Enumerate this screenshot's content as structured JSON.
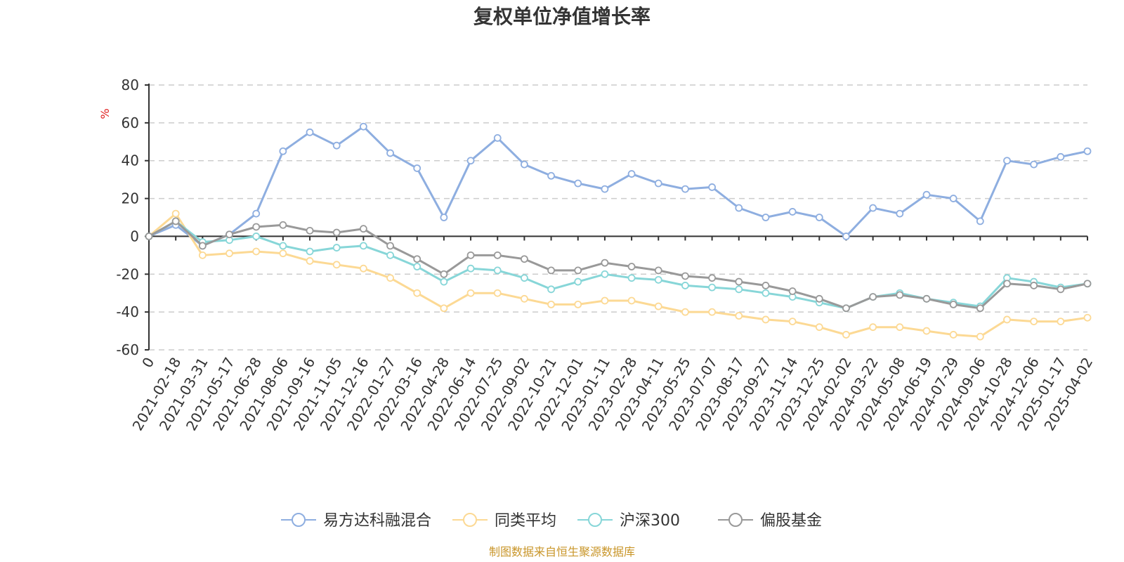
{
  "chart_data": {
    "type": "line",
    "title": "复权单位净值增长率",
    "ylabel": "%",
    "xlabel": "",
    "ylim": [
      -60,
      80
    ],
    "yticks": [
      80,
      60,
      40,
      20,
      0,
      -20,
      -40,
      -60
    ],
    "grid": true,
    "legend_position": "bottom",
    "categories": [
      "0",
      "2021-02-18",
      "2021-03-31",
      "2021-05-17",
      "2021-06-28",
      "2021-08-06",
      "2021-09-16",
      "2021-11-05",
      "2021-12-16",
      "2022-01-27",
      "2022-03-16",
      "2022-04-28",
      "2022-06-14",
      "2022-07-25",
      "2022-09-02",
      "2022-10-21",
      "2022-12-01",
      "2023-01-11",
      "2023-02-28",
      "2023-04-11",
      "2023-05-25",
      "2023-07-07",
      "2023-08-17",
      "2023-09-27",
      "2023-11-14",
      "2023-12-25",
      "2024-02-02",
      "2024-03-22",
      "2024-05-08",
      "2024-06-19",
      "2024-07-29",
      "2024-09-06",
      "2024-10-28",
      "2024-12-06",
      "2025-01-17",
      "2025-04-02"
    ],
    "series": [
      {
        "name": "易方达科融混合",
        "color": "#8eaee0",
        "values": [
          0,
          6,
          -5,
          1,
          12,
          45,
          55,
          48,
          58,
          44,
          36,
          10,
          40,
          52,
          38,
          32,
          28,
          25,
          33,
          28,
          25,
          26,
          15,
          10,
          13,
          10,
          0,
          15,
          12,
          22,
          20,
          8,
          40,
          38,
          42,
          45
        ]
      },
      {
        "name": "同类平均",
        "color": "#fcd994",
        "values": [
          0,
          12,
          -10,
          -9,
          -8,
          -9,
          -13,
          -15,
          -17,
          -22,
          -30,
          -38,
          -30,
          -30,
          -33,
          -36,
          -36,
          -34,
          -34,
          -37,
          -40,
          -40,
          -42,
          -44,
          -45,
          -48,
          -52,
          -48,
          -48,
          -50,
          -52,
          -53,
          -44,
          -45,
          -45,
          -43
        ]
      },
      {
        "name": "沪深300",
        "color": "#87d6d8",
        "values": [
          0,
          8,
          -3,
          -2,
          0,
          -5,
          -8,
          -6,
          -5,
          -10,
          -16,
          -24,
          -17,
          -18,
          -22,
          -28,
          -24,
          -20,
          -22,
          -23,
          -26,
          -27,
          -28,
          -30,
          -32,
          -35,
          -38,
          -32,
          -30,
          -33,
          -35,
          -37,
          -22,
          -24,
          -27,
          -25
        ]
      },
      {
        "name": "偏股基金",
        "color": "#999999",
        "values": [
          0,
          8,
          -5,
          1,
          5,
          6,
          3,
          2,
          4,
          -5,
          -12,
          -20,
          -10,
          -10,
          -12,
          -18,
          -18,
          -14,
          -16,
          -18,
          -21,
          -22,
          -24,
          -26,
          -29,
          -33,
          -38,
          -32,
          -31,
          -33,
          -36,
          -38,
          -25,
          -26,
          -28,
          -25
        ]
      }
    ],
    "source_note": "制图数据来自恒生聚源数据库"
  }
}
